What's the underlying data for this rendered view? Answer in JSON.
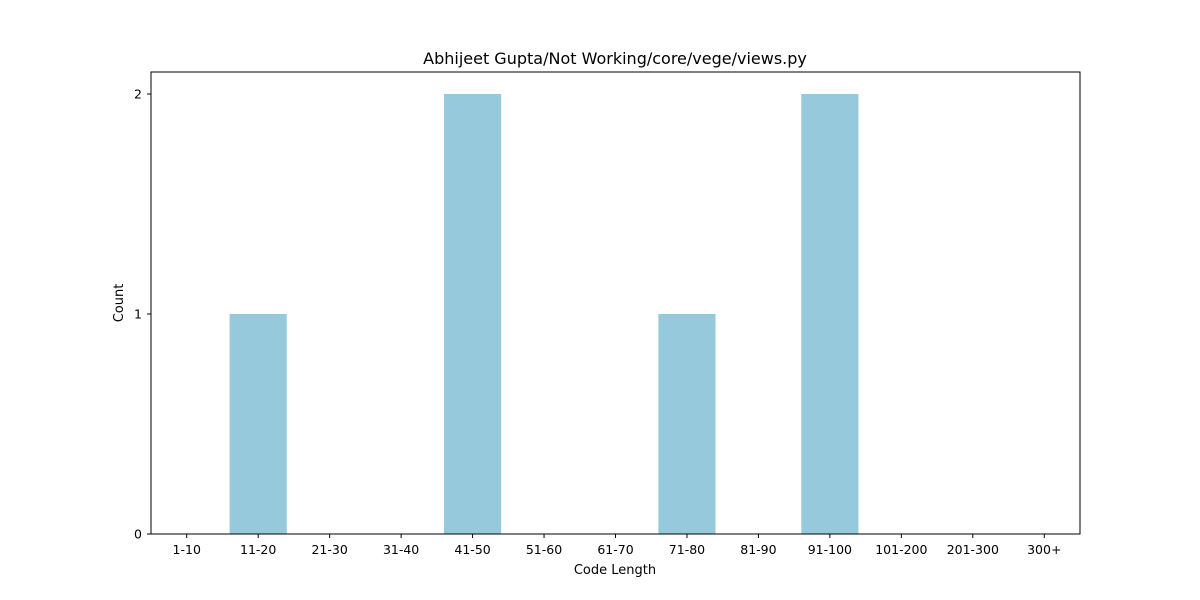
{
  "chart_data": {
    "type": "bar",
    "title": "Abhijeet Gupta/Not Working/core/vege/views.py",
    "xlabel": "Code Length",
    "ylabel": "Count",
    "categories": [
      "1-10",
      "11-20",
      "21-30",
      "31-40",
      "41-50",
      "51-60",
      "61-70",
      "71-80",
      "81-90",
      "91-100",
      "101-200",
      "201-300",
      "300+"
    ],
    "values": [
      0,
      1,
      0,
      0,
      2,
      0,
      0,
      1,
      0,
      2,
      0,
      0,
      0
    ],
    "ylim": [
      0,
      2.1
    ],
    "yticks": [
      0,
      1,
      2
    ],
    "bar_color": "#96c9dc",
    "grid": false,
    "legend": "none"
  }
}
